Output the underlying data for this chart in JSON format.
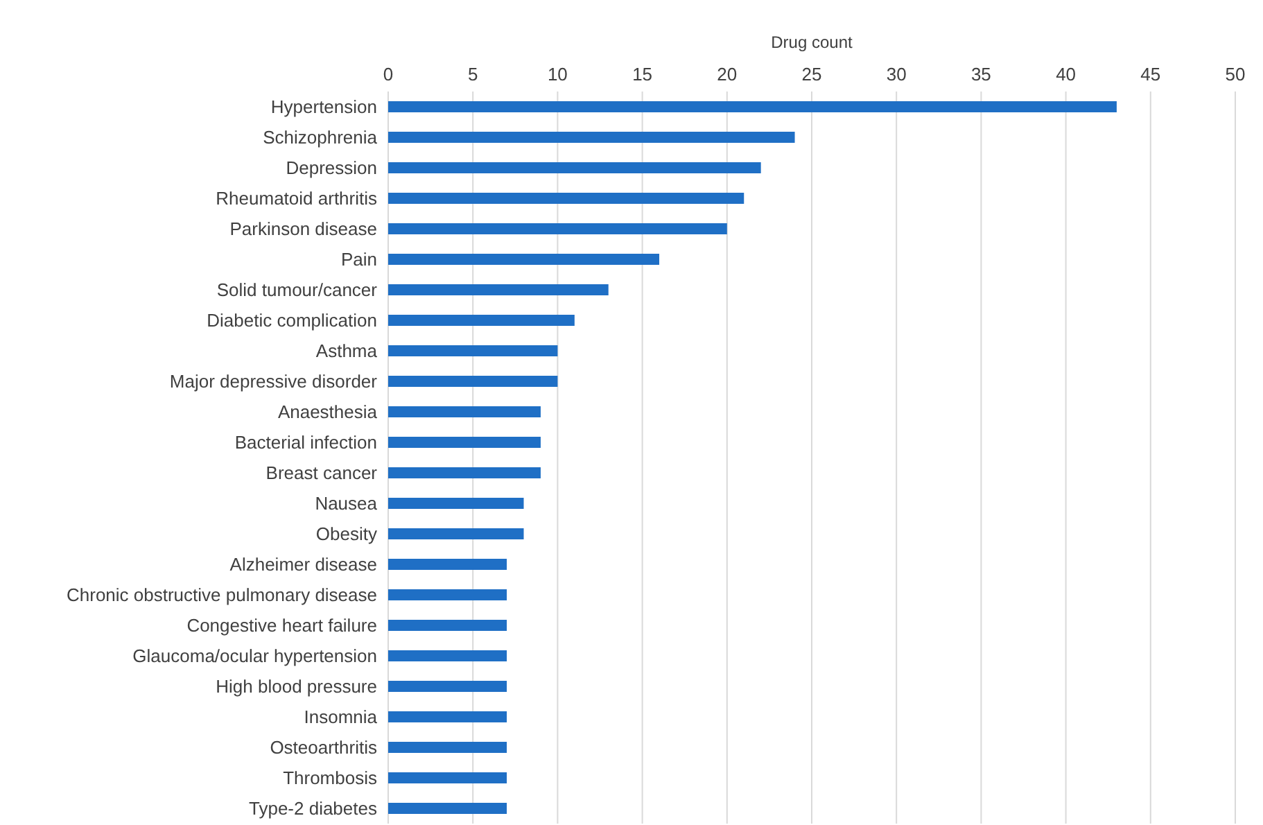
{
  "chart_data": {
    "type": "bar",
    "orientation": "horizontal",
    "xlabel": "Drug count",
    "categories": [
      "Hypertension",
      "Schizophrenia",
      "Depression",
      "Rheumatoid arthritis",
      "Parkinson disease",
      "Pain",
      "Solid tumour/cancer",
      "Diabetic complication",
      "Asthma",
      "Major depressive disorder",
      "Anaesthesia",
      "Bacterial infection",
      "Breast cancer",
      "Nausea",
      "Obesity",
      "Alzheimer disease",
      "Chronic obstructive pulmonary disease",
      "Congestive heart failure",
      "Glaucoma/ocular hypertension",
      "High blood pressure",
      "Insomnia",
      "Osteoarthritis",
      "Thrombosis",
      "Type-2 diabetes"
    ],
    "values": [
      43,
      24,
      22,
      21,
      20,
      16,
      13,
      11,
      10,
      10,
      9,
      9,
      9,
      8,
      8,
      7,
      7,
      7,
      7,
      7,
      7,
      7,
      7,
      7
    ],
    "color": "#1f6fc5",
    "xlim": [
      0,
      50
    ],
    "xticks": [
      0,
      5,
      10,
      15,
      20,
      25,
      30,
      35,
      40,
      45,
      50
    ],
    "grid": "x"
  }
}
